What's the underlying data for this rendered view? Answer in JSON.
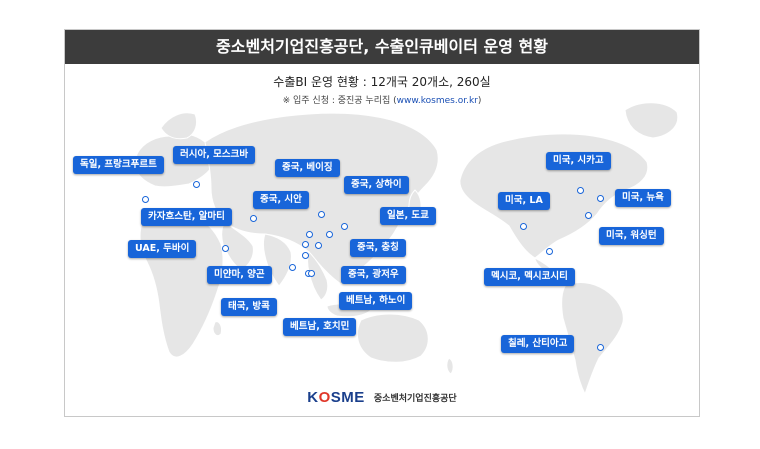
{
  "title": "중소벤처기업진흥공단, 수출인큐베이터 운영 현황",
  "subtitle": "수출BI 운영 현황 : 12개국 20개소, 260실",
  "note": {
    "prefix": "※ 입주 신청 : 중진공 누리집 (",
    "url": "www.kosmes.or.kr",
    "suffix": ")"
  },
  "locations": [
    {
      "label": "독일, 프랑크푸르트"
    },
    {
      "label": "러시아, 모스크바"
    },
    {
      "label": "중국, 베이징"
    },
    {
      "label": "중국, 상하이"
    },
    {
      "label": "중국, 시안"
    },
    {
      "label": "카자흐스탄, 알마티"
    },
    {
      "label": "일본, 도쿄"
    },
    {
      "label": "UAE, 두바이"
    },
    {
      "label": "중국, 충칭"
    },
    {
      "label": "미얀마, 양곤"
    },
    {
      "label": "중국, 광저우"
    },
    {
      "label": "태국, 방콕"
    },
    {
      "label": "베트남, 하노이"
    },
    {
      "label": "베트남, 호치민"
    },
    {
      "label": "미국, 시카고"
    },
    {
      "label": "미국, LA"
    },
    {
      "label": "미국, 뉴욕"
    },
    {
      "label": "미국, 워싱턴"
    },
    {
      "label": "멕시코, 멕시코시티"
    },
    {
      "label": "칠레, 산티아고"
    }
  ],
  "logo": {
    "brand_pre": "K",
    "brand_o": "O",
    "brand_post": "SME",
    "org": "중소벤처기업진흥공단"
  },
  "colors": {
    "title_bar": "#3c3c3c",
    "label_bg": "#1865d9",
    "map_land": "#e6e6e6",
    "logo_blue": "#1a3f8c",
    "logo_red": "#e0382a"
  }
}
